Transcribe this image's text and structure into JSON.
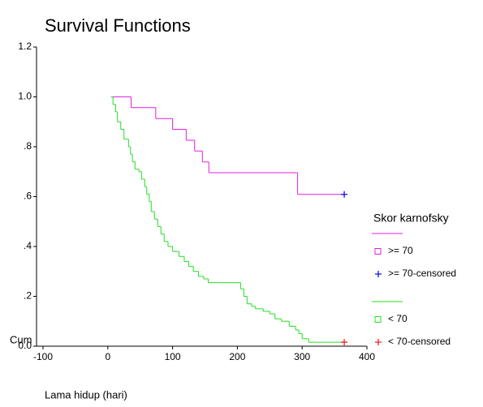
{
  "chart_data": {
    "type": "step",
    "title": "Survival Functions",
    "x_label": "Lama hidup (hari)",
    "y_label": "Cum",
    "legend_title": "Skor karnofsky",
    "legend": "right",
    "xlim": [
      -100,
      400
    ],
    "xticks": [
      -100,
      0,
      100,
      200,
      300,
      400
    ],
    "ylim": [
      0,
      1.2
    ],
    "yticks": [
      {
        "value": 0,
        "label": "0.0"
      },
      {
        "value": 0.2,
        "label": ".2"
      },
      {
        "value": 0.4,
        "label": ".4"
      },
      {
        "value": 0.6,
        "label": ".6"
      },
      {
        "value": 0.8,
        "label": ".8"
      },
      {
        "value": 1,
        "label": "1.0"
      },
      1.2
    ],
    "series": [
      {
        "name": ">= 70",
        "color": "#e020e0",
        "marker": "square",
        "x": [
          5,
          36,
          74,
          100,
          121,
          134,
          146,
          156,
          178,
          293,
          365
        ],
        "values": [
          1.0,
          0.957,
          0.913,
          0.87,
          0.826,
          0.783,
          0.739,
          0.696,
          0.696,
          0.609,
          0.609
        ]
      },
      {
        "name": ">= 70-censored",
        "color": "#1010e0",
        "marker": "plus",
        "x": [
          365
        ],
        "values": [
          0.609
        ]
      },
      {
        "name": "< 70",
        "color": "#20e020",
        "marker": "square",
        "x": [
          5,
          8,
          12,
          15,
          20,
          25,
          32,
          35,
          38,
          42,
          48,
          52,
          57,
          60,
          64,
          67,
          72,
          77,
          82,
          87,
          93,
          100,
          110,
          118,
          125,
          132,
          140,
          148,
          155,
          205,
          210,
          215,
          222,
          228,
          240,
          250,
          258,
          268,
          280,
          290,
          295,
          300,
          310,
          365
        ],
        "values": [
          1.0,
          0.97,
          0.94,
          0.9,
          0.87,
          0.83,
          0.8,
          0.77,
          0.74,
          0.71,
          0.7,
          0.67,
          0.64,
          0.61,
          0.58,
          0.54,
          0.51,
          0.48,
          0.45,
          0.42,
          0.4,
          0.38,
          0.36,
          0.34,
          0.32,
          0.3,
          0.28,
          0.27,
          0.255,
          0.23,
          0.2,
          0.17,
          0.16,
          0.15,
          0.14,
          0.13,
          0.11,
          0.1,
          0.08,
          0.065,
          0.05,
          0.03,
          0.016,
          0.016
        ]
      },
      {
        "name": "< 70-censored",
        "color": "#f02020",
        "marker": "plus",
        "x": [
          365
        ],
        "values": [
          0.016
        ]
      }
    ]
  }
}
